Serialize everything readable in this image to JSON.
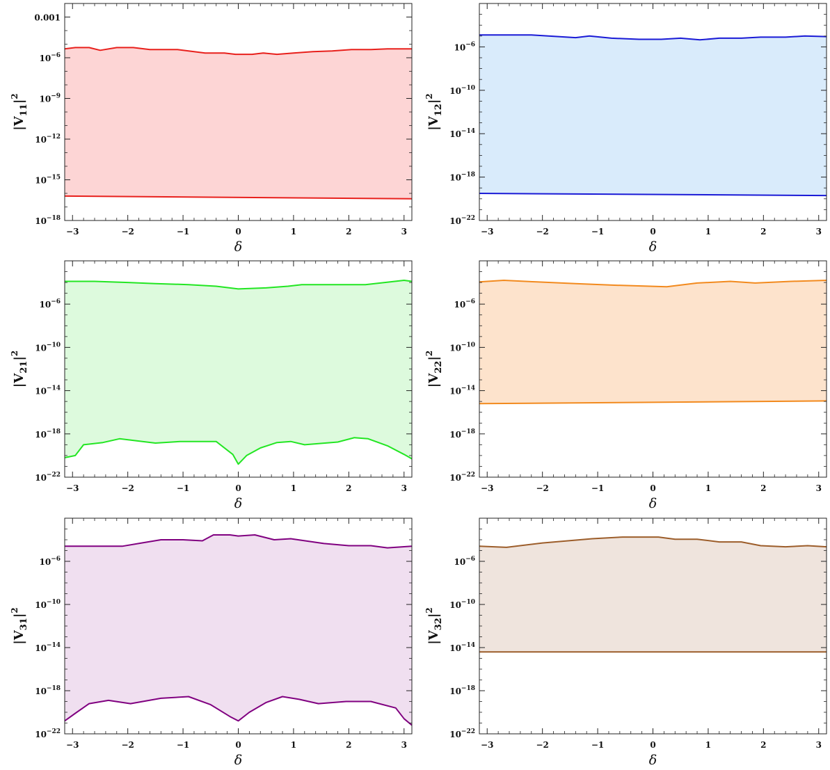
{
  "chart_data": [
    {
      "type": "area",
      "title": "",
      "ylabel": "|V11|^2",
      "ylabel_parts": {
        "main": "|V",
        "sub": "11",
        "close": "|",
        "sup": "2"
      },
      "xlabel": "δ",
      "xlim": [
        -3.1416,
        3.1416
      ],
      "ylim_log10": [
        -18,
        -2
      ],
      "y_scale": "log",
      "x_ticks": [
        -3,
        -2,
        -1,
        0,
        1,
        2,
        3
      ],
      "x_tick_labels": [
        "−3",
        "−2",
        "−1",
        "0",
        "1",
        "2",
        "3"
      ],
      "y_ticks_log10": [
        -18,
        -15,
        -12,
        -9,
        -6,
        -3
      ],
      "y_tick_labels": [
        {
          "base": "10",
          "exp": "−18"
        },
        {
          "base": "10",
          "exp": "−15"
        },
        {
          "base": "10",
          "exp": "−12"
        },
        {
          "base": "10",
          "exp": "−9"
        },
        {
          "base": "10",
          "exp": "−6"
        },
        {
          "base": "",
          "exp": "",
          "plain": "0.001"
        }
      ],
      "line_color": "#e8201c",
      "fill_color": "#fdd5d5",
      "x_upper": [
        -3.1416,
        -2.95,
        -2.7,
        -2.5,
        -2.2,
        -1.9,
        -1.6,
        -1.1,
        -0.6,
        -0.25,
        -0.05,
        0.25,
        0.45,
        0.7,
        1.0,
        1.35,
        1.7,
        2.05,
        2.4,
        2.7,
        3.1416
      ],
      "upper_log10": [
        -5.35,
        -5.25,
        -5.25,
        -5.45,
        -5.25,
        -5.25,
        -5.4,
        -5.4,
        -5.65,
        -5.65,
        -5.75,
        -5.75,
        -5.65,
        -5.75,
        -5.65,
        -5.55,
        -5.5,
        -5.4,
        -5.4,
        -5.35,
        -5.35
      ],
      "x_lower": [
        -3.1416,
        3.1416
      ],
      "lower_log10": [
        -16.2,
        -16.4
      ]
    },
    {
      "type": "area",
      "title": "",
      "ylabel": "|V12|^2",
      "ylabel_parts": {
        "main": "|V",
        "sub": "12",
        "close": "|",
        "sup": "2"
      },
      "xlabel": "δ",
      "xlim": [
        -3.1416,
        3.1416
      ],
      "ylim_log10": [
        -22,
        -2
      ],
      "y_scale": "log",
      "x_ticks": [
        -3,
        -2,
        -1,
        0,
        1,
        2,
        3
      ],
      "x_tick_labels": [
        "−3",
        "−2",
        "−1",
        "0",
        "1",
        "2",
        "3"
      ],
      "y_ticks_log10": [
        -22,
        -18,
        -14,
        -10,
        -6
      ],
      "y_tick_labels": [
        {
          "base": "10",
          "exp": "−22"
        },
        {
          "base": "10",
          "exp": "−18"
        },
        {
          "base": "10",
          "exp": "−14"
        },
        {
          "base": "10",
          "exp": "−10"
        },
        {
          "base": "10",
          "exp": "−6"
        }
      ],
      "line_color": "#1a1ad6",
      "fill_color": "#d9ebfb",
      "x_upper": [
        -3.1416,
        -2.6,
        -2.2,
        -1.4,
        -1.15,
        -0.75,
        -0.25,
        0.15,
        0.5,
        0.85,
        1.2,
        1.6,
        1.95,
        2.4,
        2.75,
        3.1416
      ],
      "upper_log10": [
        -4.9,
        -4.9,
        -4.9,
        -5.15,
        -5.0,
        -5.2,
        -5.3,
        -5.3,
        -5.2,
        -5.35,
        -5.2,
        -5.2,
        -5.1,
        -5.1,
        -5.0,
        -5.05
      ],
      "x_lower": [
        -3.1416,
        3.1416
      ],
      "lower_log10": [
        -19.5,
        -19.7
      ]
    },
    {
      "type": "area",
      "title": "",
      "ylabel": "|V21|^2",
      "ylabel_parts": {
        "main": "|V",
        "sub": "21",
        "close": "|",
        "sup": "2"
      },
      "xlabel": "δ",
      "xlim": [
        -3.1416,
        3.1416
      ],
      "ylim_log10": [
        -22,
        -2
      ],
      "y_scale": "log",
      "x_ticks": [
        -3,
        -2,
        -1,
        0,
        1,
        2,
        3
      ],
      "x_tick_labels": [
        "−3",
        "−2",
        "−1",
        "0",
        "1",
        "2",
        "3"
      ],
      "y_ticks_log10": [
        -22,
        -18,
        -14,
        -10,
        -6
      ],
      "y_tick_labels": [
        {
          "base": "10",
          "exp": "−22"
        },
        {
          "base": "10",
          "exp": "−18"
        },
        {
          "base": "10",
          "exp": "−14"
        },
        {
          "base": "10",
          "exp": "−10"
        },
        {
          "base": "10",
          "exp": "−6"
        }
      ],
      "line_color": "#22e622",
      "fill_color": "#ddfadd",
      "x_upper": [
        -3.1416,
        -2.6,
        -2.0,
        -1.5,
        -0.9,
        -0.4,
        0.0,
        0.5,
        0.9,
        1.15,
        1.5,
        1.9,
        2.3,
        2.75,
        3.0,
        3.1416
      ],
      "upper_log10": [
        -3.9,
        -3.9,
        -4.0,
        -4.1,
        -4.2,
        -4.35,
        -4.6,
        -4.5,
        -4.35,
        -4.2,
        -4.2,
        -4.2,
        -4.2,
        -3.95,
        -3.8,
        -3.9
      ],
      "x_lower": [
        -3.1416,
        -2.95,
        -2.8,
        -2.45,
        -2.15,
        -1.5,
        -1.05,
        -0.4,
        -0.1,
        0.0,
        0.15,
        0.4,
        0.7,
        0.95,
        1.2,
        1.8,
        2.1,
        2.35,
        2.7,
        3.0,
        3.1416
      ],
      "lower_log10": [
        -20.2,
        -20.0,
        -19.0,
        -18.8,
        -18.45,
        -18.85,
        -18.7,
        -18.7,
        -19.9,
        -20.8,
        -20.0,
        -19.3,
        -18.8,
        -18.7,
        -19.0,
        -18.75,
        -18.35,
        -18.45,
        -19.1,
        -19.9,
        -20.3
      ]
    },
    {
      "type": "area",
      "title": "",
      "ylabel": "|V22|^2",
      "ylabel_parts": {
        "main": "|V",
        "sub": "22",
        "close": "|",
        "sup": "2"
      },
      "xlabel": "δ",
      "xlim": [
        -3.1416,
        3.1416
      ],
      "ylim_log10": [
        -22,
        -2
      ],
      "y_scale": "log",
      "x_ticks": [
        -3,
        -2,
        -1,
        0,
        1,
        2,
        3
      ],
      "x_tick_labels": [
        "−3",
        "−2",
        "−1",
        "0",
        "1",
        "2",
        "3"
      ],
      "y_ticks_log10": [
        -22,
        -18,
        -14,
        -10,
        -6
      ],
      "y_tick_labels": [
        {
          "base": "10",
          "exp": "−22"
        },
        {
          "base": "10",
          "exp": "−18"
        },
        {
          "base": "10",
          "exp": "−14"
        },
        {
          "base": "10",
          "exp": "−10"
        },
        {
          "base": "10",
          "exp": "−6"
        }
      ],
      "line_color": "#f28a1e",
      "fill_color": "#fde3cc",
      "x_upper": [
        -3.1416,
        -2.7,
        -2.1,
        -1.4,
        -0.7,
        0.25,
        0.8,
        1.4,
        1.85,
        2.5,
        3.1416
      ],
      "upper_log10": [
        -3.95,
        -3.8,
        -3.95,
        -4.1,
        -4.25,
        -4.4,
        -4.05,
        -3.9,
        -4.05,
        -3.9,
        -3.8
      ],
      "x_lower": [
        -3.1416,
        3.1416
      ],
      "lower_log10": [
        -15.2,
        -14.95
      ]
    },
    {
      "type": "area",
      "title": "",
      "ylabel": "|V31|^2",
      "ylabel_parts": {
        "main": "|V",
        "sub": "31",
        "close": "|",
        "sup": "2"
      },
      "xlabel": "δ",
      "xlim": [
        -3.1416,
        3.1416
      ],
      "ylim_log10": [
        -22,
        -2
      ],
      "y_scale": "log",
      "x_ticks": [
        -3,
        -2,
        -1,
        0,
        1,
        2,
        3
      ],
      "x_tick_labels": [
        "−3",
        "−2",
        "−1",
        "0",
        "1",
        "2",
        "3"
      ],
      "y_ticks_log10": [
        -22,
        -18,
        -14,
        -10,
        -6
      ],
      "y_tick_labels": [
        {
          "base": "10",
          "exp": "−22"
        },
        {
          "base": "10",
          "exp": "−18"
        },
        {
          "base": "10",
          "exp": "−14"
        },
        {
          "base": "10",
          "exp": "−10"
        },
        {
          "base": "10",
          "exp": "−6"
        }
      ],
      "line_color": "#800080",
      "fill_color": "#f0dff0",
      "x_upper": [
        -3.1416,
        -2.1,
        -1.75,
        -1.4,
        -1.0,
        -0.65,
        -0.45,
        -0.15,
        0.0,
        0.3,
        0.65,
        0.95,
        1.55,
        2.0,
        2.4,
        2.7,
        3.1416
      ],
      "upper_log10": [
        -4.6,
        -4.6,
        -4.3,
        -4.0,
        -4.0,
        -4.1,
        -3.55,
        -3.55,
        -3.65,
        -3.55,
        -4.0,
        -3.9,
        -4.35,
        -4.55,
        -4.55,
        -4.75,
        -4.6
      ],
      "x_lower": [
        -3.1416,
        -2.95,
        -2.7,
        -2.35,
        -1.95,
        -1.4,
        -0.9,
        -0.5,
        -0.15,
        0.0,
        0.2,
        0.5,
        0.8,
        1.1,
        1.45,
        1.95,
        2.4,
        2.85,
        3.0,
        3.1416
      ],
      "lower_log10": [
        -20.8,
        -20.1,
        -19.2,
        -18.9,
        -19.2,
        -18.7,
        -18.55,
        -19.3,
        -20.4,
        -20.8,
        -20.0,
        -19.1,
        -18.55,
        -18.8,
        -19.2,
        -19.0,
        -19.0,
        -19.6,
        -20.6,
        -21.2
      ]
    },
    {
      "type": "area",
      "title": "",
      "ylabel": "|V32|^2",
      "ylabel_parts": {
        "main": "|V",
        "sub": "32",
        "close": "|",
        "sup": "2"
      },
      "xlabel": "δ",
      "xlim": [
        -3.1416,
        3.1416
      ],
      "ylim_log10": [
        -22,
        -2
      ],
      "y_scale": "log",
      "x_ticks": [
        -3,
        -2,
        -1,
        0,
        1,
        2,
        3
      ],
      "x_tick_labels": [
        "−3",
        "−2",
        "−1",
        "0",
        "1",
        "2",
        "3"
      ],
      "y_ticks_log10": [
        -22,
        -18,
        -14,
        -10,
        -6
      ],
      "y_tick_labels": [
        {
          "base": "10",
          "exp": "−22"
        },
        {
          "base": "10",
          "exp": "−18"
        },
        {
          "base": "10",
          "exp": "−14"
        },
        {
          "base": "10",
          "exp": "−10"
        },
        {
          "base": "10",
          "exp": "−6"
        }
      ],
      "line_color": "#9c5d2a",
      "fill_color": "#efe4dd",
      "x_upper": [
        -3.1416,
        -2.65,
        -2.0,
        -1.1,
        -0.55,
        0.1,
        0.4,
        0.8,
        1.2,
        1.6,
        1.95,
        2.4,
        2.8,
        3.1416
      ],
      "upper_log10": [
        -4.6,
        -4.7,
        -4.3,
        -3.9,
        -3.75,
        -3.75,
        -3.95,
        -3.95,
        -4.2,
        -4.2,
        -4.55,
        -4.65,
        -4.55,
        -4.65
      ],
      "x_lower": [
        -3.1416,
        3.1416
      ],
      "lower_log10": [
        -14.4,
        -14.4
      ]
    }
  ]
}
